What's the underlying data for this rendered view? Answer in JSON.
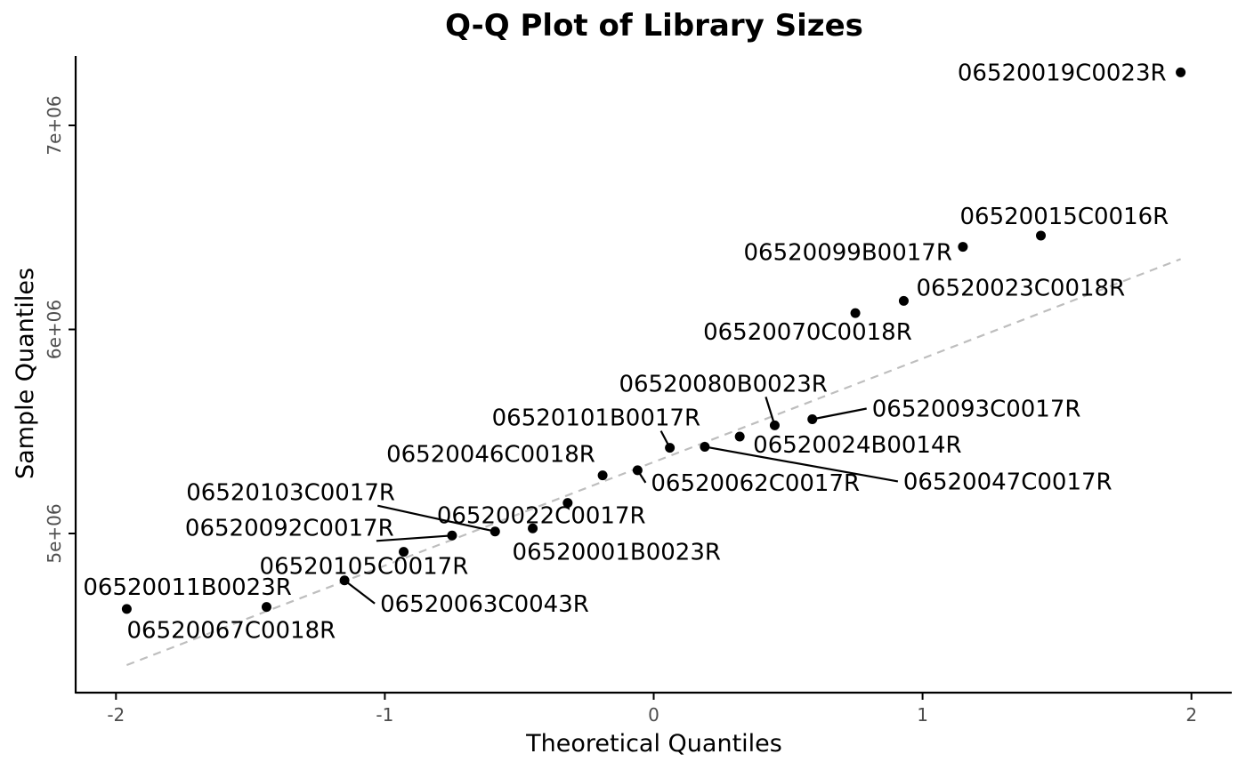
{
  "chart_data": {
    "type": "scatter",
    "title": "Q-Q Plot of Library Sizes",
    "xlabel": "Theoretical Quantiles",
    "ylabel": "Sample Quantiles",
    "xlim": [
      -2.15,
      2.15
    ],
    "ylim": [
      4220000,
      7340000
    ],
    "x_ticks": [
      -2,
      -1,
      0,
      1,
      2
    ],
    "x_tick_labels": [
      "-2",
      "-1",
      "0",
      "1",
      "2"
    ],
    "y_ticks": [
      5000000,
      6000000,
      7000000
    ],
    "y_tick_labels": [
      "5e+06",
      "6e+06",
      "7e+06"
    ],
    "grid": false,
    "reference_line": {
      "style": "dashed",
      "color": "#bebebe",
      "x": [
        -1.96,
        1.96
      ],
      "y": [
        4355000,
        6345000
      ]
    },
    "points": [
      {
        "name": "06520011B0023R",
        "x": -1.96,
        "y": 4630000
      },
      {
        "name": "06520067C0018R",
        "x": -1.44,
        "y": 4640000
      },
      {
        "name": "06520063C0043R",
        "x": -1.15,
        "y": 4770000
      },
      {
        "name": "06520105C0017R",
        "x": -0.93,
        "y": 4910000
      },
      {
        "name": "06520092C0017R",
        "x": -0.75,
        "y": 4990000
      },
      {
        "name": "06520103C0017R",
        "x": -0.59,
        "y": 5010000
      },
      {
        "name": "06520001B0023R",
        "x": -0.45,
        "y": 5025000
      },
      {
        "name": "06520022C0017R",
        "x": -0.32,
        "y": 5150000
      },
      {
        "name": "06520046C0018R",
        "x": -0.19,
        "y": 5285000
      },
      {
        "name": "06520062C0017R",
        "x": -0.06,
        "y": 5310000
      },
      {
        "name": "06520101B0017R",
        "x": 0.06,
        "y": 5420000
      },
      {
        "name": "06520047C0017R",
        "x": 0.19,
        "y": 5425000
      },
      {
        "name": "06520024B0014R",
        "x": 0.32,
        "y": 5475000
      },
      {
        "name": "06520080B0023R",
        "x": 0.45,
        "y": 5530000
      },
      {
        "name": "06520093C0017R",
        "x": 0.59,
        "y": 5560000
      },
      {
        "name": "06520070C0018R",
        "x": 0.75,
        "y": 6080000
      },
      {
        "name": "06520023C0018R",
        "x": 0.93,
        "y": 6140000
      },
      {
        "name": "06520099B0017R",
        "x": 1.15,
        "y": 6405000
      },
      {
        "name": "06520015C0016R",
        "x": 1.44,
        "y": 6460000
      },
      {
        "name": "06520019C0023R",
        "x": 1.96,
        "y": 7260000
      }
    ]
  }
}
